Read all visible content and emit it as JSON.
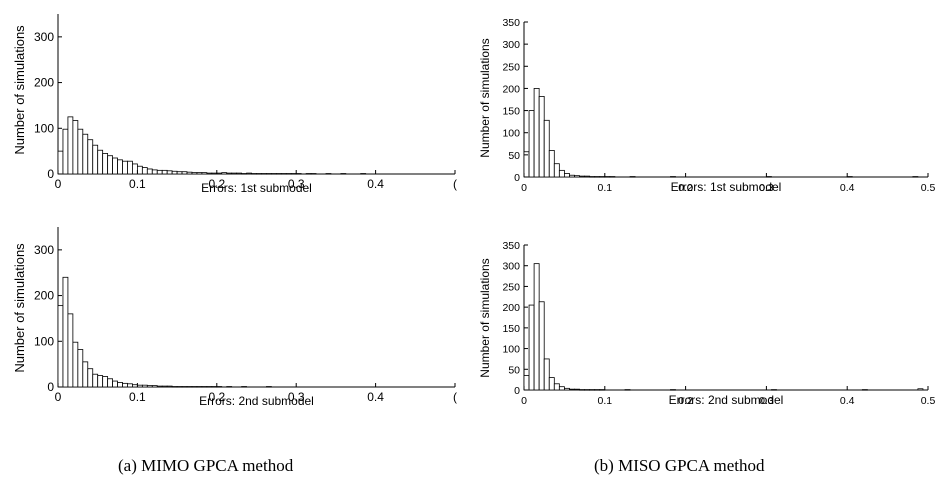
{
  "captions": {
    "left": "(a) MIMO GPCA method",
    "right": "(b) MISO GPCA method"
  },
  "chart_data": [
    {
      "type": "bar",
      "panel": "MIMO, 1st submodel",
      "xlabel": "Errors: 1st submodel",
      "ylabel": "Number of simulations",
      "xlim": [
        0,
        0.5
      ],
      "ylim": [
        0,
        350
      ],
      "xticks": [
        "0",
        "0.1",
        "0.2",
        "0.3",
        "0.4",
        "("
      ],
      "yticks": [
        "0",
        "100",
        "200",
        "300"
      ],
      "bin_width": 0.00625,
      "values": [
        50,
        98,
        125,
        117,
        98,
        87,
        75,
        63,
        52,
        45,
        40,
        35,
        31,
        28,
        28,
        22,
        17,
        14,
        11,
        9,
        8,
        8,
        7,
        6,
        5,
        5,
        4,
        3,
        3,
        3,
        2,
        2,
        2,
        3,
        2,
        2,
        2,
        1,
        2,
        1,
        1,
        1,
        1,
        1,
        1,
        1,
        1,
        1,
        1,
        0,
        1,
        1,
        0,
        0,
        1,
        0,
        0,
        1,
        0,
        0,
        0,
        1,
        0,
        0,
        0,
        0,
        0,
        0,
        0,
        0,
        0,
        0,
        0,
        0,
        0,
        0,
        0,
        0,
        0,
        0
      ]
    },
    {
      "type": "bar",
      "panel": "MIMO, 2nd submodel",
      "xlabel": "Errors: 2nd submodel",
      "ylabel": "Number of simulations",
      "xlim": [
        0,
        0.5
      ],
      "ylim": [
        0,
        350
      ],
      "xticks": [
        "0",
        "0.1",
        "0.2",
        "0.3",
        "0.4",
        "("
      ],
      "yticks": [
        "0",
        "100",
        "200",
        "300"
      ],
      "bin_width": 0.00625,
      "values": [
        178,
        240,
        160,
        98,
        82,
        55,
        40,
        28,
        25,
        23,
        18,
        13,
        10,
        8,
        7,
        5,
        4,
        4,
        3,
        3,
        2,
        2,
        2,
        1,
        1,
        1,
        1,
        1,
        1,
        1,
        1,
        1,
        1,
        0,
        1,
        0,
        0,
        1,
        0,
        0,
        0,
        0,
        1,
        0,
        0,
        0,
        0,
        0,
        0,
        0,
        0,
        0,
        0,
        0,
        0,
        0,
        0,
        0,
        0,
        0,
        0,
        0,
        0,
        0,
        0,
        0,
        0,
        0,
        0,
        0,
        0,
        0,
        0,
        0,
        0,
        0,
        0,
        0,
        0,
        0
      ]
    },
    {
      "type": "bar",
      "panel": "MISO, 1st submodel",
      "xlabel": "Errors: 1st submodel",
      "ylabel": "Number of simulations",
      "xlim": [
        0,
        0.5
      ],
      "ylim": [
        0,
        350
      ],
      "xticks": [
        "0",
        "0.1",
        "0.2",
        "0.3",
        "0.4",
        "0.5"
      ],
      "yticks": [
        "0",
        "50",
        "100",
        "150",
        "200",
        "250",
        "300",
        "350"
      ],
      "bin_width": 0.00625,
      "values": [
        57,
        150,
        200,
        182,
        128,
        60,
        30,
        15,
        8,
        4,
        3,
        2,
        2,
        1,
        1,
        1,
        1,
        1,
        0,
        0,
        0,
        1,
        0,
        0,
        0,
        0,
        0,
        0,
        0,
        1,
        0,
        0,
        0,
        0,
        0,
        0,
        0,
        0,
        0,
        0,
        0,
        0,
        0,
        0,
        0,
        0,
        0,
        0,
        1,
        0,
        0,
        0,
        0,
        0,
        0,
        0,
        0,
        0,
        0,
        0,
        0,
        0,
        0,
        0,
        1,
        0,
        0,
        0,
        0,
        0,
        0,
        0,
        0,
        0,
        0,
        0,
        0,
        1,
        0,
        0
      ]
    },
    {
      "type": "bar",
      "panel": "MISO, 2nd submodel",
      "xlabel": "Errors: 2nd submodel",
      "ylabel": "Number of simulations",
      "xlim": [
        0,
        0.5
      ],
      "ylim": [
        0,
        350
      ],
      "xticks": [
        "0",
        "0.1",
        "0.2",
        "0.3",
        "0.4",
        "0.5"
      ],
      "yticks": [
        "0",
        "50",
        "100",
        "150",
        "200",
        "250",
        "300",
        "350"
      ],
      "bin_width": 0.00625,
      "values": [
        35,
        205,
        305,
        213,
        75,
        30,
        15,
        8,
        4,
        2,
        2,
        1,
        1,
        1,
        1,
        1,
        0,
        0,
        0,
        0,
        1,
        0,
        0,
        0,
        0,
        0,
        0,
        0,
        0,
        1,
        0,
        0,
        0,
        0,
        0,
        0,
        0,
        0,
        0,
        0,
        0,
        0,
        0,
        0,
        0,
        0,
        0,
        0,
        0,
        1,
        0,
        0,
        0,
        0,
        0,
        0,
        0,
        0,
        0,
        0,
        0,
        0,
        0,
        0,
        0,
        0,
        0,
        1,
        0,
        0,
        0,
        0,
        0,
        0,
        0,
        0,
        0,
        0,
        3,
        0
      ]
    }
  ]
}
